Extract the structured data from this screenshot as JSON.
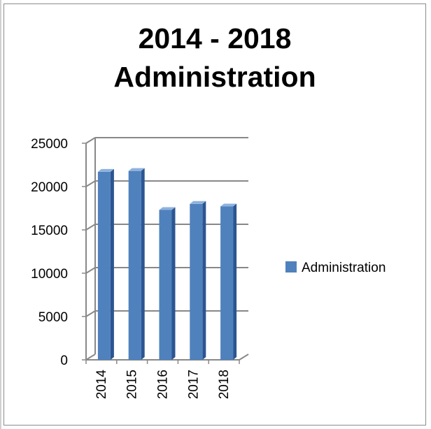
{
  "chart_data": {
    "type": "bar",
    "title": [
      "2014 - 2018",
      "Administration"
    ],
    "categories": [
      "2014",
      "2015",
      "2016",
      "2017",
      "2018"
    ],
    "series": [
      {
        "name": "Administration",
        "values": [
          21700,
          21800,
          17300,
          18000,
          17700
        ]
      }
    ],
    "ylim": [
      0,
      25000
    ],
    "y_ticks": [
      "0",
      "5000",
      "10000",
      "15000",
      "20000",
      "25000"
    ],
    "grid": true,
    "legend_position": "right",
    "bar_style": "3d-column",
    "colors": {
      "bar_front": "#4f81bd",
      "bar_side": "#2c5591",
      "bar_top": "#8eb2de",
      "gridline": "#888888",
      "axis": "#888888"
    }
  }
}
